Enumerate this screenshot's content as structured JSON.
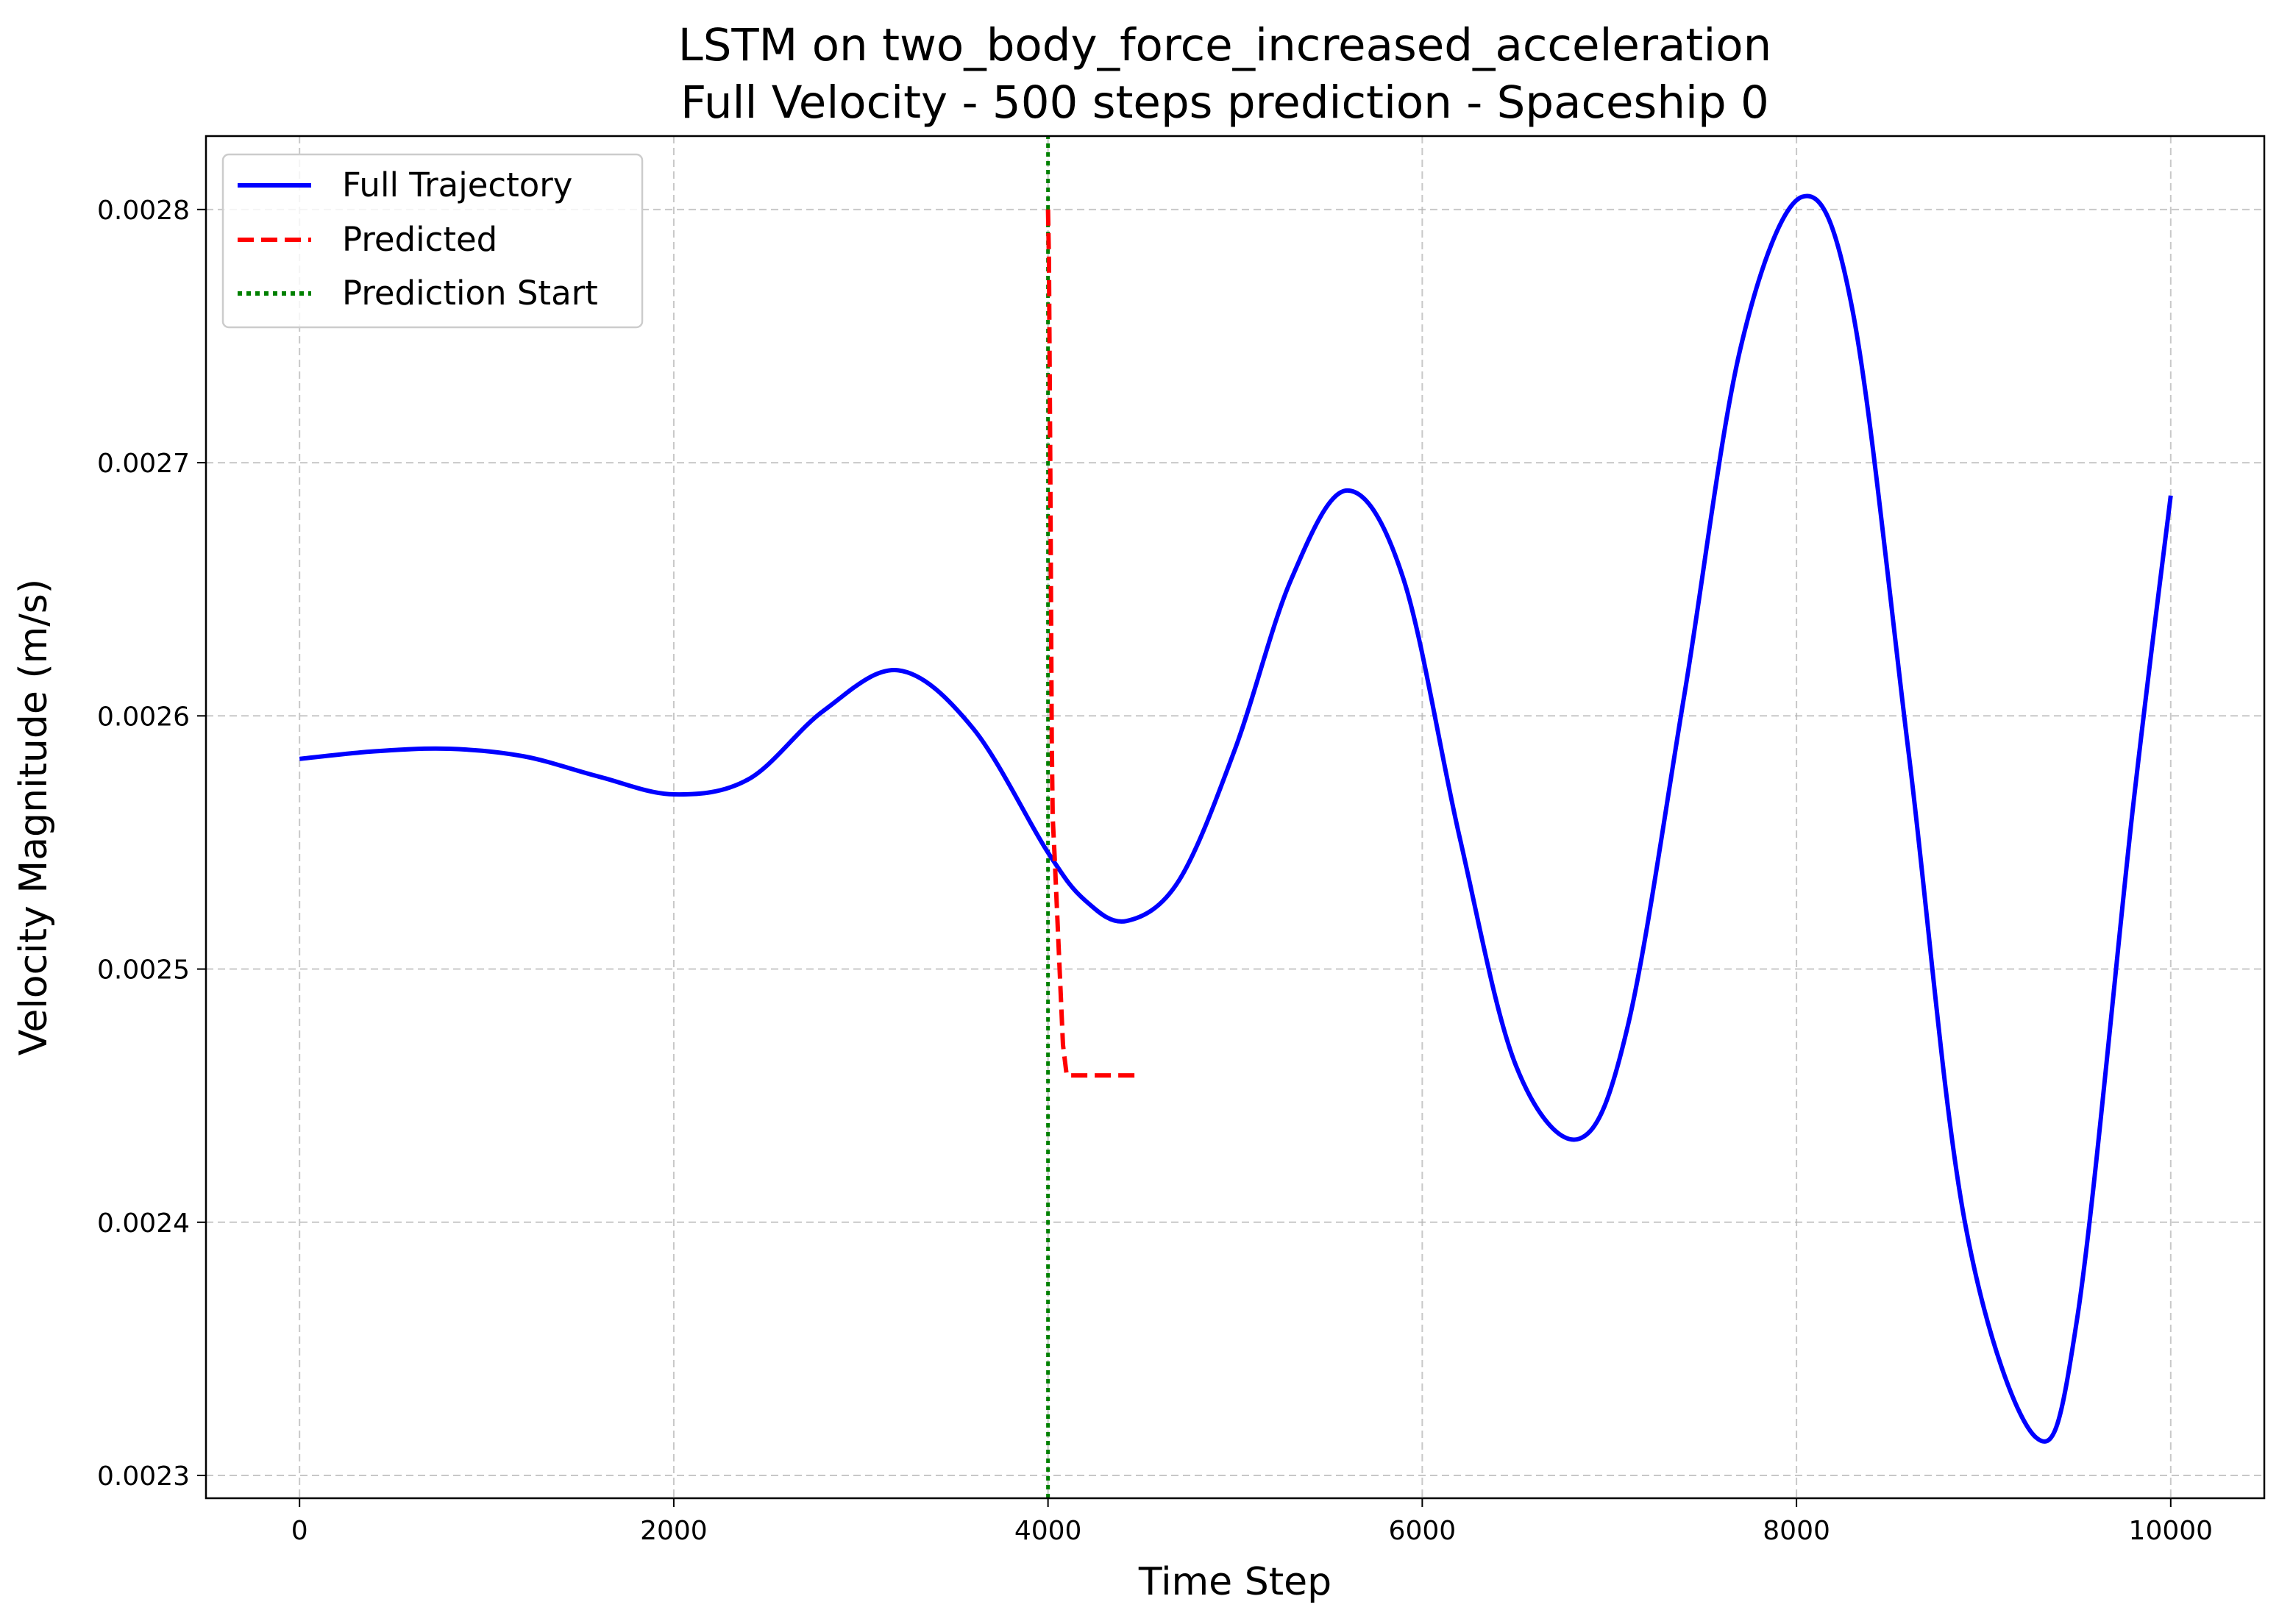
{
  "chart_data": {
    "type": "line",
    "title": "LSTM on two_body_force_increased_acceleration",
    "subtitle": "Full Velocity - 500 steps prediction - Spaceship 0",
    "xlabel": "Time Step",
    "ylabel": "Velocity Magnitude (m/s)",
    "xlim": [
      -500,
      10500
    ],
    "ylim": [
      0.002291,
      0.002829
    ],
    "xticks": [
      0,
      2000,
      4000,
      6000,
      8000,
      10000
    ],
    "xtick_labels": [
      "0",
      "2000",
      "4000",
      "6000",
      "8000",
      "10000"
    ],
    "yticks": [
      0.0023,
      0.0024,
      0.0025,
      0.0026,
      0.0027,
      0.0028
    ],
    "ytick_labels": [
      "0.0023",
      "0.0024",
      "0.0025",
      "0.0026",
      "0.0027",
      "0.0028"
    ],
    "grid": true,
    "legend_position": "top-left",
    "series": [
      {
        "name": "Full Trajectory",
        "color": "#0000ff",
        "style": "solid",
        "x": [
          0,
          400,
          800,
          1200,
          1600,
          2000,
          2400,
          2800,
          3200,
          3600,
          4000,
          4200,
          4420,
          4700,
          5000,
          5300,
          5600,
          5900,
          6200,
          6500,
          6840,
          7100,
          7400,
          7700,
          8030,
          8300,
          8600,
          8900,
          9280,
          9500,
          9800,
          10000
        ],
        "y": [
          0.002583,
          0.002586,
          0.002587,
          0.002584,
          0.002576,
          0.002569,
          0.002575,
          0.002602,
          0.002618,
          0.002595,
          0.002546,
          0.002527,
          0.002519,
          0.002535,
          0.002587,
          0.002654,
          0.002689,
          0.002654,
          0.002552,
          0.002462,
          0.002433,
          0.002478,
          0.002608,
          0.002745,
          0.002805,
          0.00276,
          0.002585,
          0.0024,
          0.002315,
          0.002362,
          0.002565,
          0.002687
        ]
      },
      {
        "name": "Predicted",
        "color": "#ff0000",
        "style": "dashed",
        "x": [
          4000,
          4005,
          4012,
          4015,
          4020,
          4025,
          4035,
          4050,
          4080,
          4100,
          4300,
          4500
        ],
        "y": [
          0.0028,
          0.00278,
          0.0027,
          0.00266,
          0.00259,
          0.00256,
          0.002545,
          0.00252,
          0.00247,
          0.002458,
          0.002458,
          0.002458
        ]
      },
      {
        "name": "Prediction Start",
        "color": "#008000",
        "style": "dotted",
        "x": [
          4000,
          4000
        ],
        "y": [
          0.002291,
          0.002829
        ]
      }
    ]
  }
}
